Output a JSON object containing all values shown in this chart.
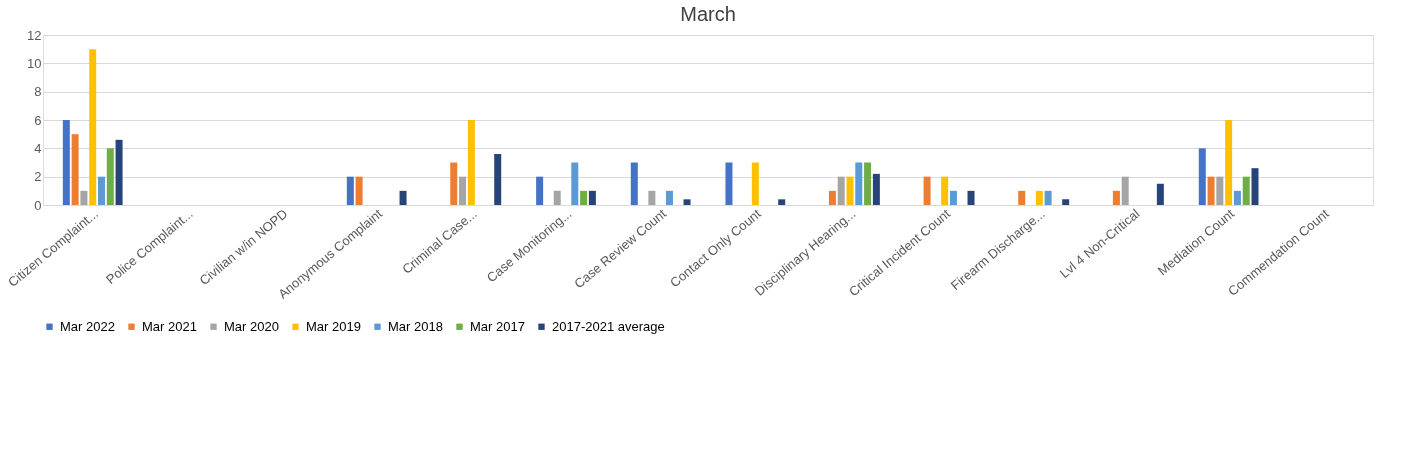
{
  "chart_data": {
    "type": "bar",
    "title": "March",
    "categories": [
      "Citizen Complaint...",
      "Police Complaint...",
      "Civilian w/in NOPD",
      "Anonymous Complaint",
      "Criminal Case...",
      "Case Monitoring...",
      "Case Review Count",
      "Contact Only Count",
      "Disciplinary Hearing...",
      "Critical Incident Count",
      "Firearm Discharge...",
      "Lvl 4 Non-Critical",
      "Mediation Count",
      "Commendation Count"
    ],
    "series": [
      {
        "name": "Mar 2022",
        "color": "#4472c4",
        "values": [
          6,
          0,
          0,
          2,
          0,
          2,
          3,
          3,
          0,
          0,
          0,
          0,
          4,
          0
        ]
      },
      {
        "name": "Mar 2021",
        "color": "#ed7d31",
        "values": [
          5,
          0,
          0,
          2,
          3,
          0,
          0,
          0,
          1,
          2,
          1,
          1,
          2,
          0
        ]
      },
      {
        "name": "Mar 2020",
        "color": "#a5a5a5",
        "values": [
          1,
          0,
          0,
          0,
          2,
          1,
          1,
          0,
          2,
          0,
          0,
          2,
          2,
          0
        ]
      },
      {
        "name": "Mar 2019",
        "color": "#ffc000",
        "values": [
          11,
          0,
          0,
          0,
          6,
          0,
          0,
          3,
          2,
          2,
          1,
          0,
          6,
          0
        ]
      },
      {
        "name": "Mar 2018",
        "color": "#5b9bd5",
        "values": [
          2,
          0,
          0,
          0,
          0,
          3,
          1,
          0,
          3,
          1,
          1,
          0,
          1,
          0
        ]
      },
      {
        "name": "Mar 2017",
        "color": "#70ad47",
        "values": [
          4,
          0,
          0,
          0,
          0,
          1,
          0,
          0,
          3,
          0,
          0,
          0,
          2,
          0
        ]
      },
      {
        "name": "2017-2021 average",
        "color": "#264478",
        "values": [
          4.6,
          0,
          0,
          1,
          3.6,
          1,
          0.4,
          0.4,
          2.2,
          1,
          0.4,
          1.5,
          2.6,
          0
        ]
      }
    ],
    "ylim": [
      0,
      12
    ],
    "yticks": [
      0,
      2,
      4,
      6,
      8,
      10,
      12
    ],
    "grid": "y",
    "legend": "bottom"
  }
}
